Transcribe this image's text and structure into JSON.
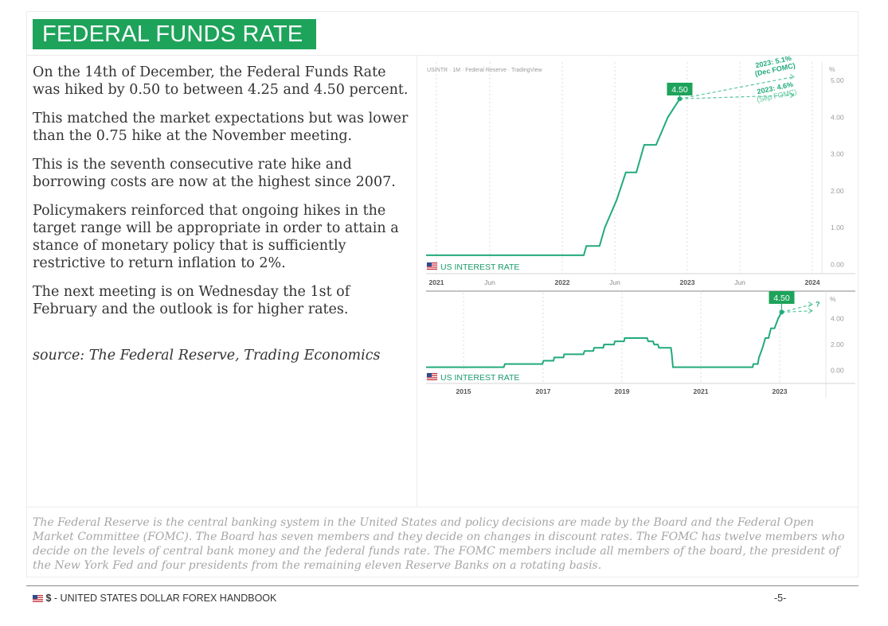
{
  "header": {
    "title": "FEDERAL FUNDS RATE"
  },
  "body": {
    "paragraphs": [
      "On the 14th of December, the Federal Funds Rate was hiked by 0.50 to between 4.25 and 4.50 percent.",
      "This matched the market expectations but was lower than the 0.75 hike at the November meeting.",
      "This is the seventh consecutive rate hike and borrowing costs are now at the highest since 2007.",
      "Policymakers reinforced that ongoing hikes in the target range will be appropriate in order to attain a stance of monetary policy that is sufficiently restrictive to return inflation to 2%.",
      "The next meeting is on Wednesday the 1st of February and the outlook is for higher rates."
    ],
    "source": "source: The Federal Reserve, Trading Economics"
  },
  "notes": "The Federal Reserve is the central banking system in the United States and policy decisions are made by the Board and the Federal Open Market Committee (FOMC). The Board has seven members and they decide on changes in discount rates. The FOMC has twelve members who decide on the levels of central bank money and the federal funds rate. The FOMC members include all members of the board, the president of the New York Fed and four presidents from the remaining eleven Reserve Banks on a rotating basis.",
  "footer": {
    "currency_symbol": "$",
    "handbook": " - UNITED STATES DOLLAR FOREX HANDBOOK",
    "page": "-5-"
  },
  "colors": {
    "brand_green": "#1ea35b",
    "line": "#22ab7a",
    "projection": "#56c79a"
  },
  "chart_data": [
    {
      "type": "line",
      "source_label": "USINTR · 1M · Federal Reserve · TradingView",
      "legend": "US INTEREST RATE",
      "unit_label": "%",
      "current_label": "4.50",
      "x_tick_labels": [
        "2021",
        "Jun",
        "2022",
        "Jun",
        "2023",
        "Jun",
        "2024"
      ],
      "y_ticks": [
        "5.00",
        "4.00",
        "3.00",
        "2.00",
        "1.00",
        "0.00"
      ],
      "y_tick_values": [
        5,
        4,
        3,
        2,
        1,
        0
      ],
      "ylim": [
        -0.25,
        5.5
      ],
      "xlim": [
        2021.0,
        2024.0
      ],
      "series": [
        {
          "name": "US INTEREST RATE",
          "points": [
            [
              2021.0,
              0.25
            ],
            [
              2022.2,
              0.25
            ],
            [
              2022.22,
              0.5
            ],
            [
              2022.32,
              0.5
            ],
            [
              2022.36,
              1.0
            ],
            [
              2022.45,
              1.75
            ],
            [
              2022.52,
              2.5
            ],
            [
              2022.6,
              2.5
            ],
            [
              2022.66,
              3.25
            ],
            [
              2022.75,
              3.25
            ],
            [
              2022.84,
              4.0
            ],
            [
              2022.93,
              4.5
            ]
          ]
        }
      ],
      "projections": [
        {
          "label_line1": "2023: 5.1%",
          "label_line2": "(Dec FOMC)",
          "end_x": 2023.8,
          "end_y": 5.1
        },
        {
          "label_line1": "2023: 4.6%",
          "label_line2": "(Sep FOMC)",
          "end_x": 2023.8,
          "end_y": 4.6
        }
      ]
    },
    {
      "type": "line",
      "legend": "US INTEREST RATE",
      "unit_label": "%",
      "current_label": "4.50",
      "x_tick_labels": [
        "2015",
        "2017",
        "2019",
        "2021",
        "2023"
      ],
      "y_ticks": [
        "4.00",
        "2.00",
        "0.00"
      ],
      "y_tick_values": [
        4,
        2,
        0
      ],
      "ylim": [
        -1.0,
        6.0
      ],
      "xlim": [
        2014.0,
        2024.0
      ],
      "series": [
        {
          "name": "US INTEREST RATE",
          "points": [
            [
              2014.0,
              0.25
            ],
            [
              2015.95,
              0.25
            ],
            [
              2015.98,
              0.5
            ],
            [
              2016.92,
              0.5
            ],
            [
              2016.95,
              0.75
            ],
            [
              2017.2,
              0.75
            ],
            [
              2017.22,
              1.0
            ],
            [
              2017.45,
              1.0
            ],
            [
              2017.47,
              1.25
            ],
            [
              2017.95,
              1.25
            ],
            [
              2017.98,
              1.5
            ],
            [
              2018.2,
              1.5
            ],
            [
              2018.22,
              1.75
            ],
            [
              2018.45,
              1.75
            ],
            [
              2018.47,
              2.0
            ],
            [
              2018.72,
              2.0
            ],
            [
              2018.74,
              2.25
            ],
            [
              2018.97,
              2.25
            ],
            [
              2018.99,
              2.5
            ],
            [
              2019.55,
              2.5
            ],
            [
              2019.58,
              2.25
            ],
            [
              2019.7,
              2.25
            ],
            [
              2019.73,
              2.0
            ],
            [
              2019.82,
              2.0
            ],
            [
              2019.85,
              1.75
            ],
            [
              2020.15,
              1.75
            ],
            [
              2020.17,
              1.25
            ],
            [
              2020.2,
              0.25
            ],
            [
              2022.2,
              0.25
            ],
            [
              2022.22,
              0.5
            ],
            [
              2022.33,
              0.5
            ],
            [
              2022.36,
              1.0
            ],
            [
              2022.45,
              1.75
            ],
            [
              2022.52,
              2.5
            ],
            [
              2022.6,
              2.5
            ],
            [
              2022.66,
              3.25
            ],
            [
              2022.75,
              3.25
            ],
            [
              2022.84,
              4.0
            ],
            [
              2022.93,
              4.5
            ]
          ]
        }
      ],
      "projections": [
        {
          "label_line1": "?",
          "label_line2": "",
          "end_x": 2023.7,
          "end_y": 5.1
        },
        {
          "label_line1": "",
          "label_line2": "",
          "end_x": 2023.7,
          "end_y": 4.6
        }
      ]
    }
  ]
}
